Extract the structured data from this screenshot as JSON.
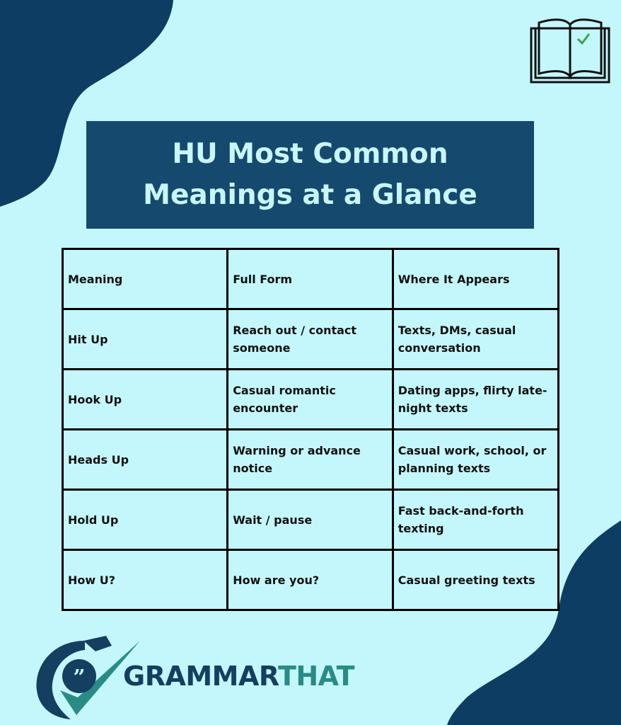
{
  "title": [
    "HU Most Common",
    "Meanings at a Glance"
  ],
  "table": {
    "header": [
      "Meaning",
      "Full Form",
      "Where It Appears"
    ],
    "rows": [
      [
        "Hit Up",
        "Reach out / contact someone",
        "Texts, DMs, casual conversation"
      ],
      [
        "Hook Up",
        "Casual romantic encounter",
        "Dating apps, flirty late-night texts"
      ],
      [
        "Heads Up",
        "Warning or advance notice",
        "Casual work, school, or planning texts"
      ],
      [
        "Hold Up",
        "Wait / pause",
        "Fast back-and-forth texting"
      ],
      [
        "How U?",
        "How are you?",
        "Casual greeting texts"
      ]
    ]
  },
  "brand": [
    "GRAMMAR",
    "THAT"
  ]
}
